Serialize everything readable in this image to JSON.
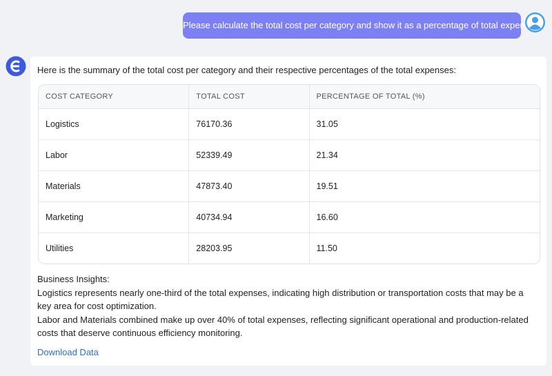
{
  "user_message": {
    "text": "Please calculate the total cost per category and show it as a percentage of total expenses"
  },
  "response": {
    "intro": "Here is the summary of the total cost per category and their respective percentages of the total expenses:",
    "table": {
      "columns": [
        "COST CATEGORY",
        "TOTAL COST",
        "PERCENTAGE OF TOTAL (%)"
      ],
      "rows": [
        [
          "Logistics",
          "76170.36",
          "31.05"
        ],
        [
          "Labor",
          "52339.49",
          "21.34"
        ],
        [
          "Materials",
          "47873.40",
          "19.51"
        ],
        [
          "Marketing",
          "40734.94",
          "16.60"
        ],
        [
          "Utilities",
          "28203.95",
          "11.50"
        ]
      ]
    },
    "insights_title": "Business Insights:",
    "insights": [
      "Logistics represents nearly one-third of the total expenses, indicating high distribution or transportation costs that may be a key area for cost optimization.",
      "Labor and Materials combined make up over 40% of total expenses, reflecting significant operational and production-related costs that deserve continuous efficiency monitoring."
    ],
    "link": "Download Data"
  }
}
